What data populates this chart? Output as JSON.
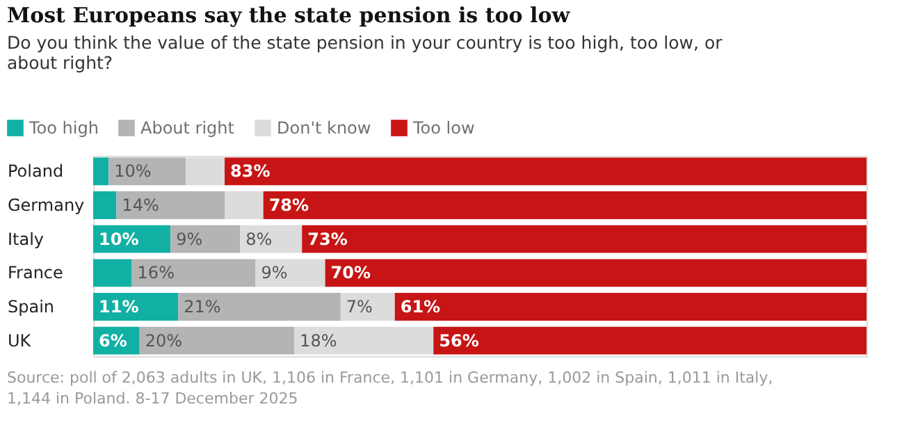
{
  "chart_data": {
    "type": "bar",
    "orientation": "horizontal",
    "stacked": true,
    "title": "Most Europeans say the state pension is too low",
    "subtitle": "Do you think the value of the state pension in your country is too high, too low, or about right?",
    "categories": [
      "Poland",
      "Germany",
      "Italy",
      "France",
      "Spain",
      "UK"
    ],
    "series": [
      {
        "name": "Too high",
        "color": "#12b0a4",
        "values": [
          2,
          3,
          10,
          5,
          11,
          6
        ],
        "value_labels": [
          null,
          null,
          "10%",
          null,
          "11%",
          "6%"
        ]
      },
      {
        "name": "About right",
        "color": "#b4b4b4",
        "values": [
          10,
          14,
          9,
          16,
          21,
          20
        ],
        "value_labels": [
          "10%",
          "14%",
          "9%",
          "16%",
          "21%",
          "20%"
        ]
      },
      {
        "name": "Don't know",
        "color": "#dcdcdc",
        "values": [
          5,
          5,
          8,
          9,
          7,
          18
        ],
        "value_labels": [
          null,
          null,
          "8%",
          "9%",
          "7%",
          "18%"
        ]
      },
      {
        "name": "Too low",
        "color": "#c71515",
        "values": [
          83,
          78,
          73,
          70,
          61,
          56
        ],
        "value_labels": [
          "83%",
          "78%",
          "73%",
          "70%",
          "61%",
          "56%"
        ]
      }
    ],
    "xlim": [
      0,
      100
    ],
    "tick_labels": "y",
    "grid": false,
    "legend": "top left",
    "annotations": [
      "Source: poll of 2,063 adults in UK, 1,106 in France, 1,101 in Germany, 1,002 in Spain, 1,011 in Italy, 1,144 in Poland. 8-17 December 2025"
    ]
  }
}
